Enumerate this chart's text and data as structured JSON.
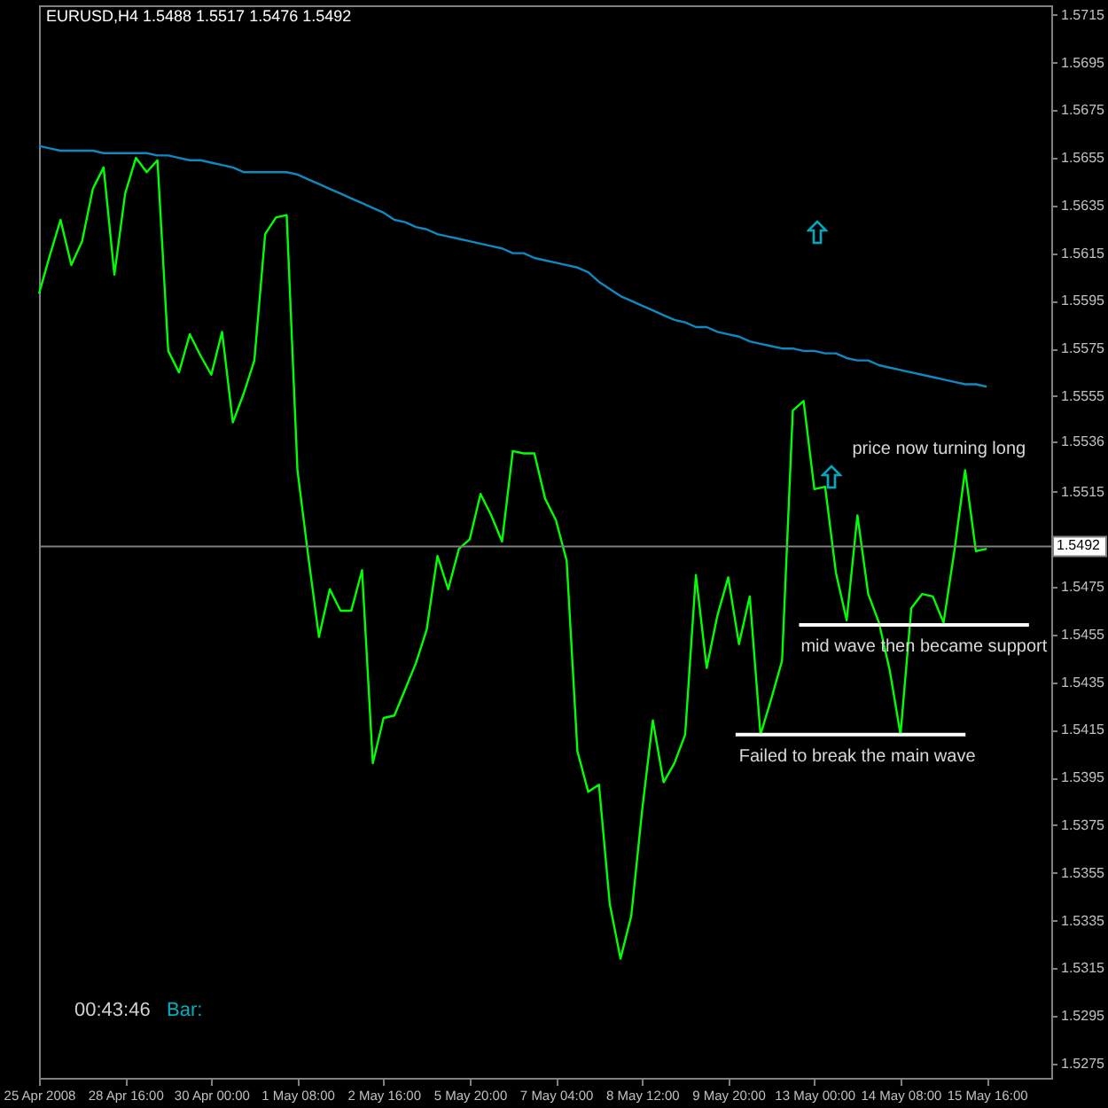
{
  "chart_data": {
    "type": "line",
    "title": "EURUSD,H4  1.5488 1.5517 1.5476 1.5492",
    "categories": [
      "25 Apr 2008",
      null,
      null,
      null,
      null,
      null,
      null,
      null,
      "28 Apr 16:00",
      null,
      null,
      null,
      null,
      null,
      null,
      null,
      "30 Apr 00:00",
      null,
      null,
      null,
      null,
      null,
      null,
      null,
      "1 May 08:00",
      null,
      null,
      null,
      null,
      null,
      null,
      null,
      "2 May 16:00",
      null,
      null,
      null,
      null,
      null,
      null,
      null,
      "5 May 20:00",
      null,
      null,
      null,
      null,
      null,
      null,
      null,
      "7 May 04:00",
      null,
      null,
      null,
      null,
      null,
      null,
      null,
      "8 May 12:00",
      null,
      null,
      null,
      null,
      null,
      null,
      null,
      "9 May 20:00",
      null,
      null,
      null,
      null,
      null,
      null,
      null,
      "13 May 00:00",
      null,
      null,
      null,
      null,
      null,
      null,
      null,
      "14 May 08:00",
      null,
      null,
      null,
      null,
      null,
      null,
      null,
      "15 May 16:00",
      null,
      null,
      null,
      null,
      null,
      null
    ],
    "series": [
      {
        "color": "#00ff00",
        "values": [
          1.5598,
          1.5614,
          1.5629,
          1.561,
          1.562,
          1.5642,
          1.5651,
          1.5606,
          1.564,
          1.5655,
          1.5649,
          1.5654,
          1.5574,
          1.5565,
          1.5581,
          1.5572,
          1.5564,
          1.5582,
          1.5544,
          1.5556,
          1.557,
          1.5623,
          1.563,
          1.5631,
          1.5524,
          1.5488,
          1.5454,
          1.5474,
          1.5465,
          1.5465,
          1.5482,
          1.5401,
          1.542,
          1.5421,
          1.5432,
          1.5443,
          1.5457,
          1.5488,
          1.5474,
          1.5491,
          1.5495,
          1.5514,
          1.5505,
          1.5494,
          1.5532,
          1.5531,
          1.5531,
          1.5512,
          1.5503,
          1.5486,
          1.5406,
          1.5389,
          1.5392,
          1.5342,
          1.5319,
          1.5337,
          1.5381,
          1.5419,
          1.5393,
          1.5401,
          1.5413,
          1.548,
          1.5441,
          1.5463,
          1.5479,
          1.5451,
          1.5471,
          1.5413,
          1.5428,
          1.5444,
          1.5549,
          1.5553,
          1.5516,
          1.5517,
          1.5481,
          1.5461,
          1.5505,
          1.5472,
          1.546,
          1.544,
          1.5413,
          1.5466,
          1.5472,
          1.5471,
          1.546,
          1.549,
          1.5524,
          1.549,
          1.5491,
          null,
          null,
          null,
          null,
          null,
          null
        ]
      },
      {
        "color": "#1088c0",
        "values": [
          1.566,
          1.5659,
          1.5658,
          1.5658,
          1.5658,
          1.5658,
          1.5657,
          1.5657,
          1.5657,
          1.5657,
          1.5657,
          1.5656,
          1.5656,
          1.5655,
          1.5654,
          1.5654,
          1.5653,
          1.5652,
          1.5651,
          1.5649,
          1.5649,
          1.5649,
          1.5649,
          1.5649,
          1.5648,
          1.5646,
          1.5644,
          1.5642,
          1.564,
          1.5638,
          1.5636,
          1.5634,
          1.5632,
          1.5629,
          1.5628,
          1.5626,
          1.5625,
          1.5623,
          1.5622,
          1.5621,
          1.562,
          1.5619,
          1.5618,
          1.5617,
          1.5615,
          1.5615,
          1.5613,
          1.5612,
          1.5611,
          1.561,
          1.5609,
          1.5607,
          1.5603,
          1.56,
          1.5597,
          1.5595,
          1.5593,
          1.5591,
          1.5589,
          1.5587,
          1.5586,
          1.5584,
          1.5584,
          1.5582,
          1.5581,
          1.558,
          1.5578,
          1.5577,
          1.5576,
          1.5575,
          1.5575,
          1.5574,
          1.5574,
          1.5573,
          1.5573,
          1.5571,
          1.557,
          1.557,
          1.5568,
          1.5567,
          1.5566,
          1.5565,
          1.5564,
          1.5563,
          1.5562,
          1.5561,
          1.556,
          1.556,
          1.5559,
          null,
          null,
          null,
          null,
          null,
          null
        ]
      }
    ],
    "ylim": [
      1.5269,
      1.5719
    ],
    "yticks": [
      1.5275,
      1.5295,
      1.5315,
      1.5335,
      1.5355,
      1.5375,
      1.5395,
      1.5415,
      1.5435,
      1.5455,
      1.5475,
      1.5515,
      1.5536,
      1.5555,
      1.5575,
      1.5595,
      1.5615,
      1.5635,
      1.5655,
      1.5675,
      1.5695,
      1.5715
    ],
    "ref_lines": [
      {
        "axis": "y",
        "value": 1.5492,
        "label": "1.5492",
        "color": "#808080"
      },
      {
        "axis": "y",
        "value": 1.5459,
        "label": "mid wave then became support",
        "color": "#ffffff"
      },
      {
        "axis": "y",
        "value": 1.5413,
        "label": "Failed to break the main wave",
        "color": "#ffffff"
      }
    ],
    "annotations": [
      "price now turning long",
      "00:43:46",
      "Bar:"
    ],
    "grid": false,
    "marker": "none",
    "line_style": "solid"
  }
}
